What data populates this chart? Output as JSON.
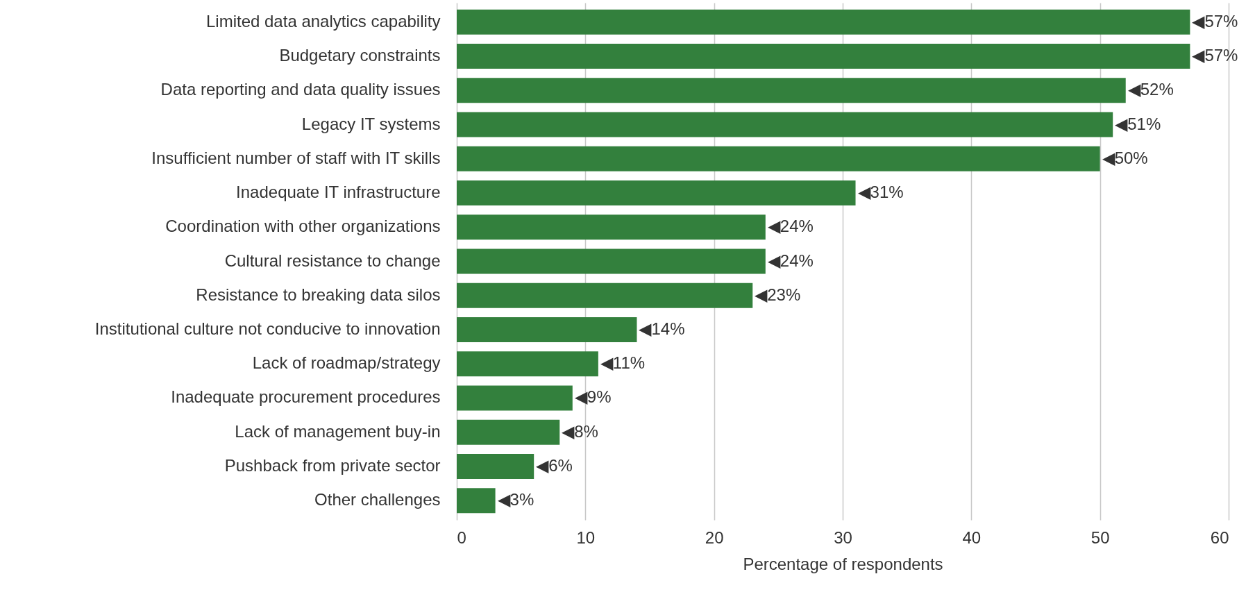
{
  "chart_data": {
    "type": "bar",
    "orientation": "horizontal",
    "xlabel": "Percentage of respondents",
    "categories": [
      "Limited data analytics capability",
      "Budgetary constraints",
      "Data reporting and data quality issues",
      "Legacy IT systems",
      "Insufficient number of staff with IT skills",
      "Inadequate IT infrastructure",
      "Coordination with other organizations",
      "Cultural resistance to change",
      "Resistance to breaking data silos",
      "Institutional culture not conducive to innovation",
      "Lack of roadmap/strategy",
      "Inadequate procurement procedures",
      "Lack of management buy-in",
      "Pushback from private sector",
      "Other challenges"
    ],
    "values": [
      57,
      57,
      52,
      51,
      50,
      31,
      24,
      24,
      23,
      14,
      11,
      9,
      8,
      6,
      3
    ],
    "value_labels": [
      "◀57%",
      "◀57%",
      "◀52%",
      "◀51%",
      "◀50%",
      "◀31%",
      "◀24%",
      "◀24%",
      "◀23%",
      "◀14%",
      "◀11%",
      "◀9%",
      "◀8%",
      "◀6%",
      "◀3%"
    ],
    "color": "#33803d",
    "xlim": [
      0,
      60
    ],
    "xticks": [
      0,
      10,
      20,
      30,
      40,
      50,
      60
    ],
    "grid": "x"
  }
}
